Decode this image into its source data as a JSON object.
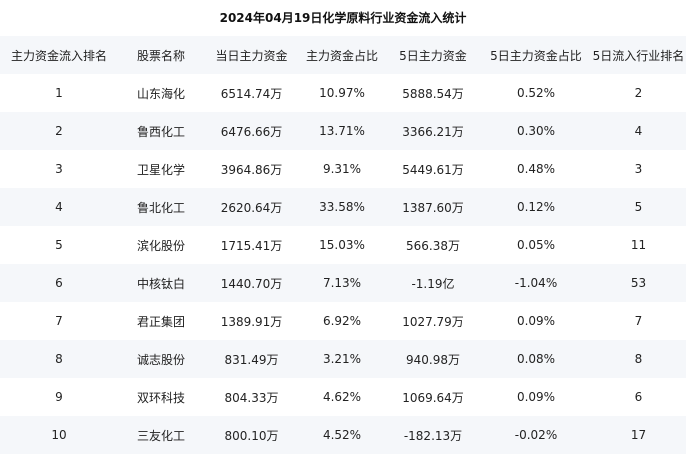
{
  "title": "2024年04月19日化学原料行业资金流入统计",
  "columns": [
    "主力资金流入排名",
    "股票名称",
    "当日主力资金",
    "主力资金占比",
    "5日主力资金",
    "5日主力资金占比",
    "5日流入行业排名"
  ],
  "rows": [
    [
      "1",
      "山东海化",
      "6514.74万",
      "10.97%",
      "5888.54万",
      "0.52%",
      "2"
    ],
    [
      "2",
      "鲁西化工",
      "6476.66万",
      "13.71%",
      "3366.21万",
      "0.30%",
      "4"
    ],
    [
      "3",
      "卫星化学",
      "3964.86万",
      "9.31%",
      "5449.61万",
      "0.48%",
      "3"
    ],
    [
      "4",
      "鲁北化工",
      "2620.64万",
      "33.58%",
      "1387.60万",
      "0.12%",
      "5"
    ],
    [
      "5",
      "滨化股份",
      "1715.41万",
      "15.03%",
      "566.38万",
      "0.05%",
      "11"
    ],
    [
      "6",
      "中核钛白",
      "1440.70万",
      "7.13%",
      "-1.19亿",
      "-1.04%",
      "53"
    ],
    [
      "7",
      "君正集团",
      "1389.91万",
      "6.92%",
      "1027.79万",
      "0.09%",
      "7"
    ],
    [
      "8",
      "诚志股份",
      "831.49万",
      "3.21%",
      "940.98万",
      "0.08%",
      "8"
    ],
    [
      "9",
      "双环科技",
      "804.33万",
      "4.62%",
      "1069.64万",
      "0.09%",
      "6"
    ],
    [
      "10",
      "三友化工",
      "800.10万",
      "4.52%",
      "-182.13万",
      "-0.02%",
      "17"
    ]
  ],
  "colors": {
    "header_bg": "#f5f7fa",
    "stripe_bg": "#f5f7fa",
    "text": "#222222"
  }
}
